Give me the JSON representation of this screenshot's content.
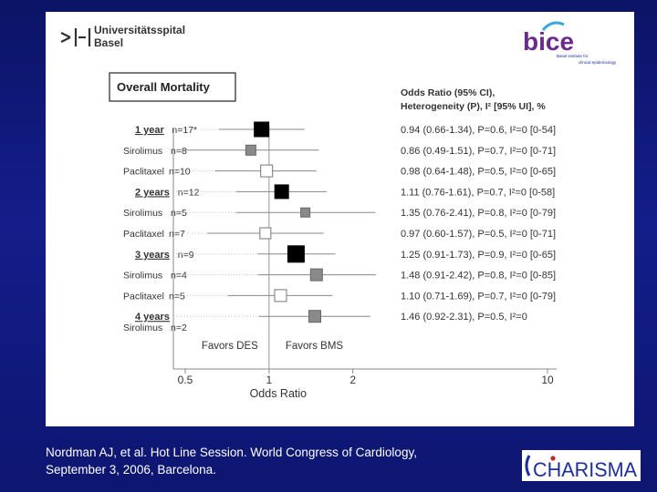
{
  "header": {
    "hospital_line1": "Universitätsspital",
    "hospital_line2": "Basel",
    "bice_logo": "bice",
    "bice_tagline_1": "Basel institute for",
    "bice_tagline_2": "clinical epidemiology",
    "title_box": "Overall Mortality",
    "stats_header_line1": "Odds Ratio (95% CI),",
    "stats_header_line2": "Heterogeneity (P), I² [95% UI], %"
  },
  "chart_data": {
    "type": "forest",
    "x_scale": "log",
    "xlabel": "Odds Ratio",
    "xticks": [
      0.5,
      1,
      2,
      10
    ],
    "xtick_labels": [
      "0.5",
      "1",
      "2",
      "10"
    ],
    "xlim": [
      0.45,
      10.5
    ],
    "reference_line": 1,
    "favors_left": "Favors DES",
    "favors_right": "Favors BMS",
    "rows": [
      {
        "label": "1 year",
        "n": "n=17*",
        "header": true,
        "or": 0.94,
        "lo": 0.66,
        "hi": 1.34,
        "marker": "black",
        "size": 16,
        "stats": "0.94 (0.66-1.34), P=0.6, I²=0 [0-54]"
      },
      {
        "label": "Sirolimus",
        "n": "n=8",
        "header": false,
        "or": 0.86,
        "lo": 0.49,
        "hi": 1.51,
        "marker": "gray",
        "size": 11,
        "stats": "0.86 (0.49-1.51), P=0.7, I²=0 [0-71]"
      },
      {
        "label": "Paclitaxel",
        "n": "n=10",
        "header": false,
        "or": 0.98,
        "lo": 0.64,
        "hi": 1.48,
        "marker": "white",
        "size": 13,
        "stats": "0.98 (0.64-1.48), P=0.5, I²=0 [0-65]"
      },
      {
        "label": "2 years",
        "n": "n=12",
        "header": true,
        "or": 1.11,
        "lo": 0.76,
        "hi": 1.61,
        "marker": "black",
        "size": 15,
        "stats": "1.11 (0.76-1.61), P=0.7, I²=0 [0-58]"
      },
      {
        "label": "Sirolimus",
        "n": "n=5",
        "header": false,
        "or": 1.35,
        "lo": 0.76,
        "hi": 2.41,
        "marker": "gray",
        "size": 10,
        "stats": "1.35 (0.76-2.41), P=0.8, I²=0 [0-79]"
      },
      {
        "label": "Paclitaxel",
        "n": "n=7",
        "header": false,
        "or": 0.97,
        "lo": 0.6,
        "hi": 1.57,
        "marker": "white",
        "size": 12,
        "stats": "0.97 (0.60-1.57), P=0.5, I²=0 [0-71]"
      },
      {
        "label": "3 years",
        "n": "n=9",
        "header": true,
        "or": 1.25,
        "lo": 0.91,
        "hi": 1.73,
        "marker": "black",
        "size": 18,
        "stats": "1.25 (0.91-1.73), P=0.9, I²=0 [0-65]"
      },
      {
        "label": "Sirolimus",
        "n": "n=4",
        "header": false,
        "or": 1.48,
        "lo": 0.91,
        "hi": 2.42,
        "marker": "gray",
        "size": 13,
        "stats": "1.48 (0.91-2.42), P=0.8, I²=0 [0-85]"
      },
      {
        "label": "Paclitaxel",
        "n": "n=5",
        "header": false,
        "or": 1.1,
        "lo": 0.71,
        "hi": 1.69,
        "marker": "white",
        "size": 13,
        "stats": "1.10 (0.71-1.69), P=0.7, I²=0 [0-79]"
      },
      {
        "label": "4 years",
        "sublabel": "Sirolimus",
        "n": "n=2",
        "header": true,
        "or": 1.46,
        "lo": 0.92,
        "hi": 2.31,
        "marker": "gray",
        "size": 13,
        "stats": "1.46 (0.92-2.31), P=0.5, I²=0"
      }
    ]
  },
  "footer": {
    "citation_line1": "Nordman AJ, et al. Hot Line Session. World Congress of Cardiology,",
    "citation_line2": "September 3, 2006, Barcelona.",
    "charisma_logo": "CHARISMA"
  }
}
